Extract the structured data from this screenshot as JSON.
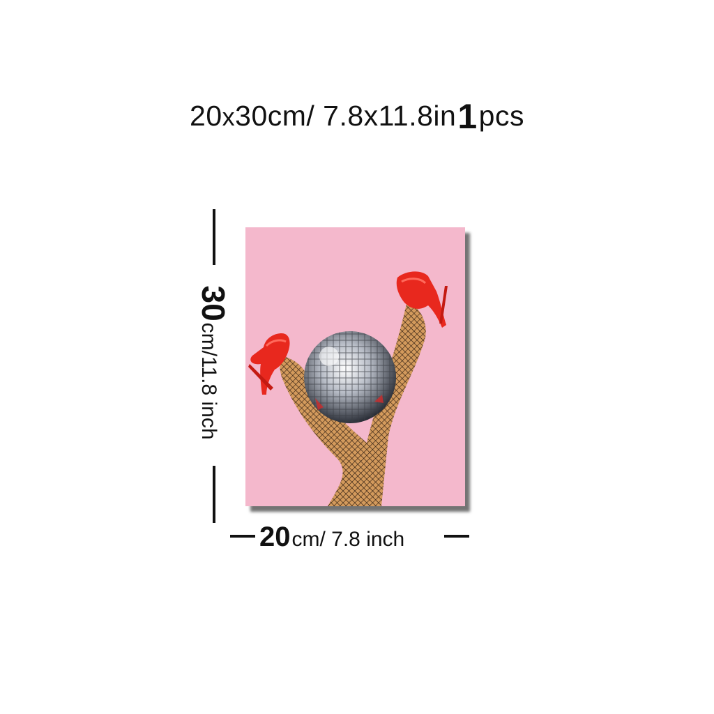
{
  "headline": {
    "part1": "20",
    "part2": "x",
    "part3": "30cm/ 7.8x11.8in",
    "quantity": "1",
    "unit": "pcs"
  },
  "height_dimension": {
    "value": "30",
    "unit_text": "cm/11.8 inch"
  },
  "width_dimension": {
    "value": "20",
    "unit_text": "cm/ 7.8 inch"
  },
  "poster": {
    "subject": "legs in fishnet stockings with red high heels around a disco ball",
    "colors": {
      "background": "#f4b8cc",
      "shoes": "#e8281e",
      "legs": "#c98a4a",
      "disco_ball": "#b9bcc4"
    }
  }
}
